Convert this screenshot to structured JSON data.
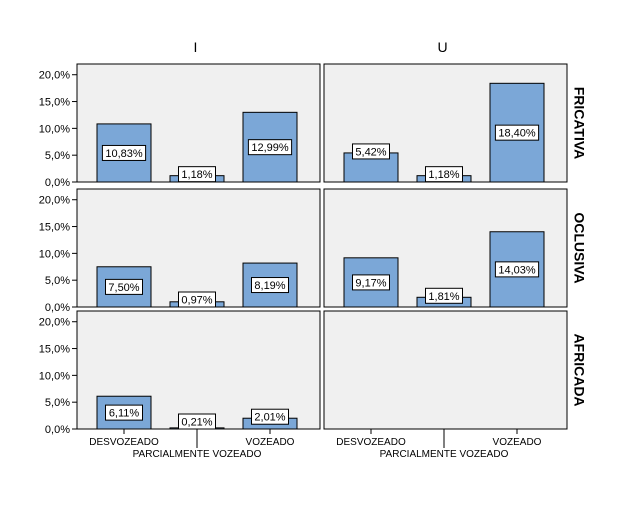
{
  "chart_data": {
    "type": "bar",
    "columns": [
      "I",
      "U"
    ],
    "rows": [
      "FRICATIVA",
      "OCLUSIVA",
      "AFRICADA"
    ],
    "categories": [
      "DESVOZEADO",
      "PARCIALMENTE VOZEADO",
      "VOZEADO"
    ],
    "ylim": [
      0,
      22
    ],
    "yticks": [
      "0,0%",
      "5,0%",
      "10,0%",
      "15,0%",
      "20,0%"
    ],
    "panels": [
      {
        "row": "FRICATIVA",
        "column": "I",
        "values": [
          10.83,
          1.18,
          12.99
        ],
        "labels": [
          "10,83%",
          "1,18%",
          "12,99%"
        ]
      },
      {
        "row": "FRICATIVA",
        "column": "U",
        "values": [
          5.42,
          1.18,
          18.4
        ],
        "labels": [
          "5,42%",
          "1,18%",
          "18,40%"
        ]
      },
      {
        "row": "OCLUSIVA",
        "column": "I",
        "values": [
          7.5,
          0.97,
          8.19
        ],
        "labels": [
          "7,50%",
          "0,97%",
          "8,19%"
        ]
      },
      {
        "row": "OCLUSIVA",
        "column": "U",
        "values": [
          9.17,
          1.81,
          14.03
        ],
        "labels": [
          "9,17%",
          "1,81%",
          "14,03%"
        ]
      },
      {
        "row": "AFRICADA",
        "column": "I",
        "values": [
          6.11,
          0.21,
          2.01
        ],
        "labels": [
          "6,11%",
          "0,21%",
          "2,01%"
        ]
      },
      {
        "row": "AFRICADA",
        "column": "U",
        "values": [],
        "labels": []
      }
    ],
    "colors": {
      "bar": "#7ba7d7",
      "bar_border": "#000000",
      "panel_bg": "#f0f0f0",
      "panel_border": "#000000"
    },
    "grid": false,
    "legend": "none"
  }
}
